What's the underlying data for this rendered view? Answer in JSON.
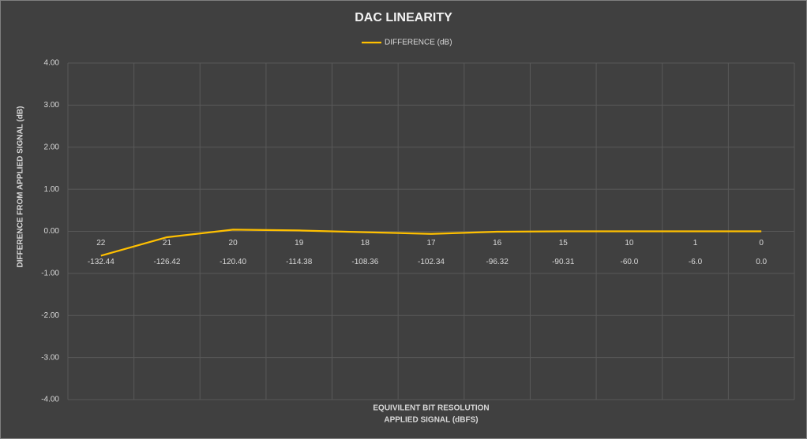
{
  "chart_data": {
    "type": "line",
    "title": "DAC LINEARITY",
    "ylabel": "DIFFERENCE FROM APPLIED SIGNAL  (dB)",
    "xlabel": [
      "EQUIVILENT BIT  RESOLUTION",
      "APPLIED SIGNAL (dBFS)"
    ],
    "categories": [
      "22",
      "21",
      "20",
      "19",
      "18",
      "17",
      "16",
      "15",
      "10",
      "1",
      "0"
    ],
    "sub_categories": [
      "-132.44",
      "-126.42",
      "-120.40",
      "-114.38",
      "-108.36",
      "-102.34",
      "-96.32",
      "-90.31",
      "-60.0",
      "-6.0",
      "0.0"
    ],
    "series": [
      {
        "name": "DIFFERENCE (dB)",
        "color": "#ffc000",
        "values": [
          -0.58,
          -0.14,
          0.04,
          0.02,
          -0.02,
          -0.06,
          -0.01,
          0,
          0,
          0,
          0
        ]
      }
    ],
    "ylim": [
      -4,
      4
    ],
    "yticks": [
      {
        "value": 4,
        "label": "4.00"
      },
      {
        "value": 3,
        "label": "3.00"
      },
      {
        "value": 2,
        "label": "2.00"
      },
      {
        "value": 1,
        "label": "1.00"
      },
      {
        "value": 0,
        "label": "0.00"
      },
      {
        "value": -1,
        "label": "-1.00"
      },
      {
        "value": -2,
        "label": "-2.00"
      },
      {
        "value": -3,
        "label": "-3.00"
      },
      {
        "value": -4,
        "label": "-4.00"
      }
    ],
    "grid": true,
    "legend": "top"
  }
}
